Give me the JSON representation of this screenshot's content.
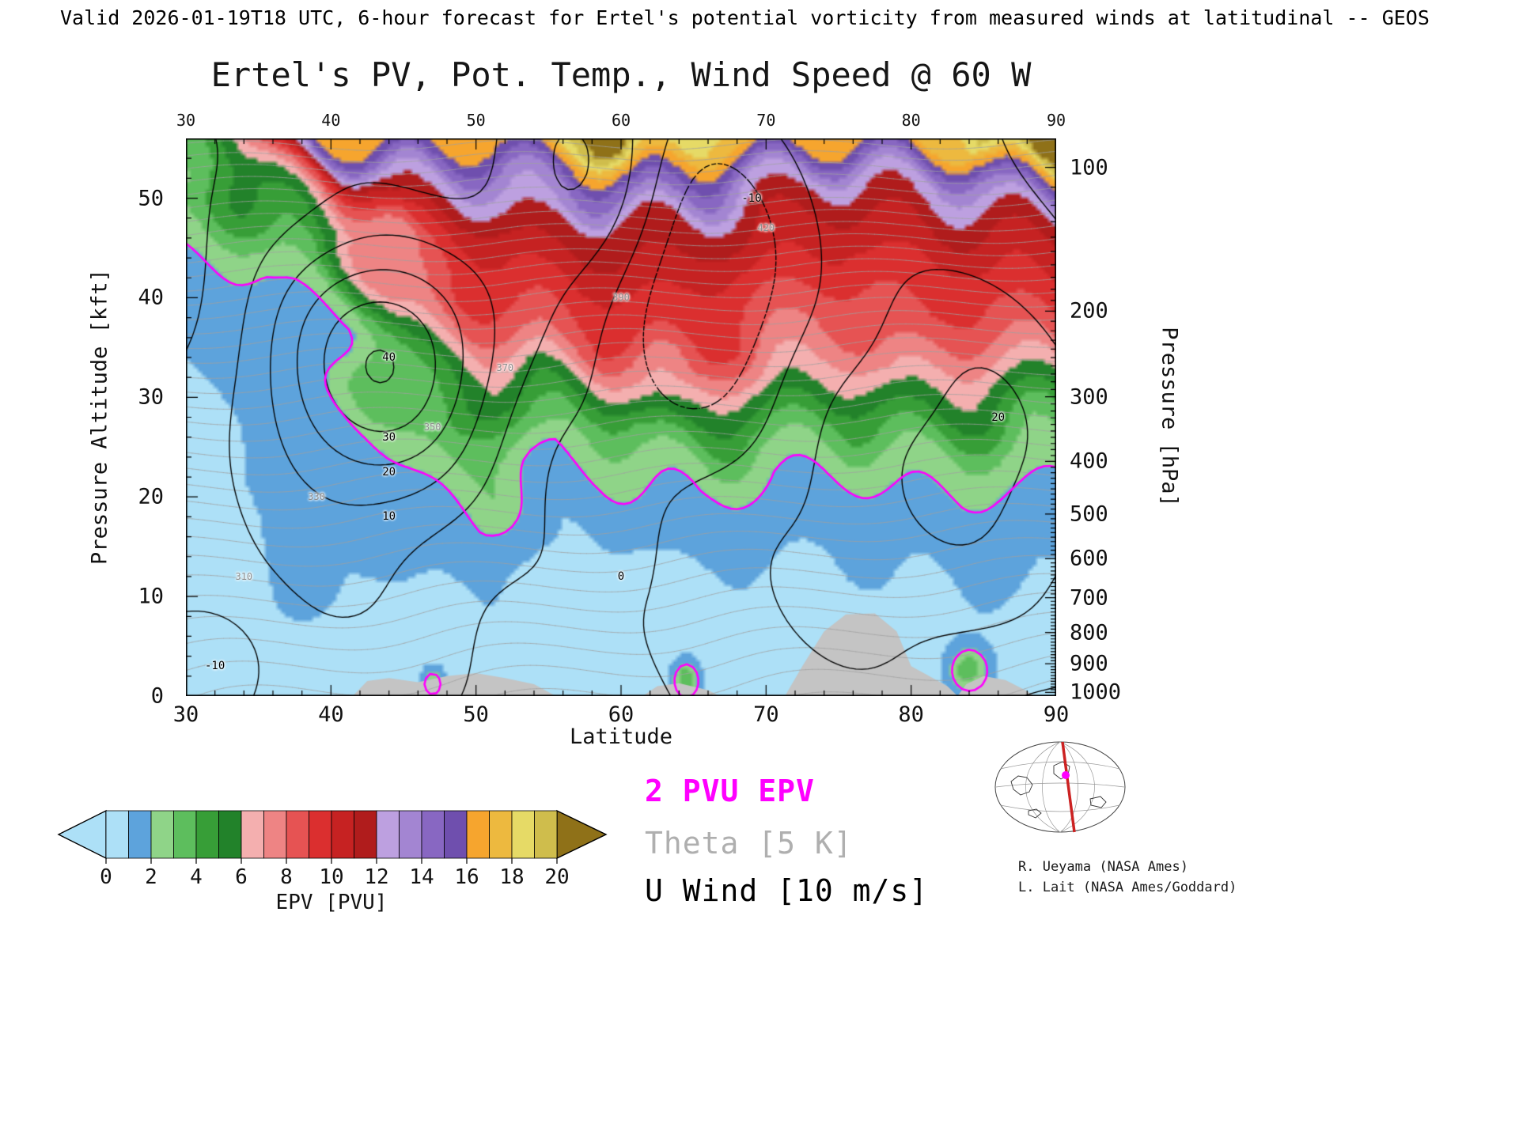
{
  "header": {
    "line": "Valid 2026-01-19T18 UTC, 6-hour forecast for Ertel's potential vorticity from measured winds at latitudinal -- GEOS"
  },
  "title": "Ertel's PV, Pot. Temp., Wind Speed @ 60 W",
  "axes": {
    "x_label": "Latitude",
    "y_left_label": "Pressure Altitude [kft]",
    "y_right_label": "Pressure [hPa]",
    "x_ticks": [
      30,
      40,
      50,
      60,
      70,
      80,
      90
    ],
    "x_minor_step": 2,
    "y_left_ticks": [
      0,
      10,
      20,
      30,
      40,
      50
    ],
    "y_left_minor_step": 2,
    "y_right_ticks": [
      100,
      200,
      300,
      400,
      500,
      600,
      700,
      800,
      900,
      1000
    ],
    "x_range": [
      30,
      90
    ],
    "y_range_kft": [
      0,
      56
    ]
  },
  "colorbar": {
    "label": "EPV [PVU]",
    "tick_values": [
      0,
      2,
      4,
      6,
      8,
      10,
      12,
      14,
      16,
      18,
      20
    ],
    "levels": [
      0,
      1,
      2,
      3,
      4,
      5,
      6,
      7,
      8,
      9,
      10,
      11,
      12,
      13,
      14,
      15,
      16,
      17,
      18,
      19,
      20
    ],
    "colors": [
      "#ADE0F7",
      "#5DA3DC",
      "#8FD488",
      "#5DBE5D",
      "#379E37",
      "#22822A",
      "#F4AFAF",
      "#EE8484",
      "#E65353",
      "#DB2F2F",
      "#C62222",
      "#B01C1C",
      "#BDA0E0",
      "#A385D2",
      "#8867C2",
      "#6F4FAE",
      "#F6A52E",
      "#EDB93F",
      "#E6DA66",
      "#CFBD4C"
    ],
    "over_color": "#8F7118"
  },
  "legend": [
    {
      "text": "2 PVU EPV",
      "color": "#FF00FF"
    },
    {
      "text": "Theta [5 K]",
      "color": "#AFAFAF"
    },
    {
      "text": "U Wind [10 m/s]",
      "color": "#000000"
    }
  ],
  "credits": [
    "R. Ueyama (NASA Ames)",
    "L. Lait (NASA Ames/Goddard)"
  ],
  "inset": {
    "meridian_color": "#CC2222",
    "marker_color": "#FF00FF"
  },
  "chart_data": {
    "type": "heatmap",
    "title": "Ertel's PV, Pot. Temp., Wind Speed @ 60 W",
    "xlabel": "Latitude",
    "ylabel": "Pressure Altitude [kft]",
    "x_range": [
      30,
      90
    ],
    "y_range_kft": [
      0,
      56
    ],
    "fill_variable": "Ertel potential vorticity [PVU]",
    "epv_grid": {
      "lats": [
        30,
        35,
        40,
        45,
        50,
        55,
        60,
        65,
        70,
        75,
        80,
        85,
        90
      ],
      "alts_kft": [
        0,
        4,
        8,
        12,
        16,
        20,
        24,
        28,
        32,
        36,
        40,
        44,
        48,
        52,
        56
      ],
      "values": [
        [
          0.3,
          0.3,
          0.3,
          0.4,
          0.5,
          0.4,
          0.4,
          0.5,
          0.5,
          0.5,
          0.6,
          0.7,
          0.6
        ],
        [
          0.3,
          0.3,
          0.4,
          0.5,
          0.6,
          0.5,
          0.5,
          0.6,
          0.6,
          0.6,
          0.7,
          0.8,
          0.7
        ],
        [
          0.3,
          0.35,
          0.5,
          0.7,
          0.8,
          0.6,
          0.6,
          0.8,
          0.7,
          0.7,
          0.8,
          0.9,
          0.8
        ],
        [
          0.35,
          0.4,
          0.6,
          1.0,
          1.2,
          0.8,
          0.8,
          1.0,
          0.9,
          0.9,
          1.0,
          1.1,
          1.0
        ],
        [
          0.4,
          0.5,
          0.8,
          1.4,
          1.6,
          1.0,
          1.0,
          1.3,
          1.2,
          1.1,
          1.3,
          1.4,
          1.2
        ],
        [
          0.5,
          0.6,
          1.0,
          1.9,
          2.6,
          1.4,
          1.5,
          2.0,
          1.6,
          1.5,
          1.8,
          2.0,
          1.6
        ],
        [
          0.6,
          0.8,
          1.2,
          2.4,
          3.5,
          2.0,
          2.5,
          3.5,
          2.5,
          2.3,
          2.8,
          3.0,
          2.2
        ],
        [
          0.8,
          1.0,
          1.3,
          3.0,
          4.5,
          3.5,
          4.0,
          6.0,
          4.5,
          4.0,
          5.0,
          5.0,
          3.5
        ],
        [
          1.0,
          1.2,
          1.5,
          4.2,
          6.0,
          5.5,
          6.5,
          8.0,
          6.5,
          6.0,
          7.0,
          6.5,
          5.5
        ],
        [
          1.2,
          1.5,
          1.7,
          5.5,
          7.5,
          8.0,
          9.0,
          9.5,
          8.0,
          7.5,
          8.5,
          8.0,
          8.0
        ],
        [
          1.5,
          1.8,
          2.2,
          7.0,
          9.0,
          9.5,
          10.0,
          10.0,
          9.0,
          8.5,
          9.5,
          9.0,
          9.5
        ],
        [
          2.0,
          2.2,
          3.5,
          8.5,
          10.0,
          10.5,
          11.0,
          11.0,
          10.0,
          9.5,
          10.0,
          10.0,
          10.5
        ],
        [
          2.5,
          4.0,
          6.0,
          10.0,
          11.0,
          12.0,
          12.0,
          12.0,
          11.0,
          10.5,
          11.0,
          11.5,
          12.0
        ],
        [
          3.0,
          6.0,
          10.0,
          12.5,
          13.0,
          14.0,
          16.0,
          15.0,
          13.0,
          12.0,
          13.0,
          14.0,
          16.0
        ],
        [
          4.0,
          8.0,
          16.0,
          17.0,
          16.5,
          18.0,
          22.0,
          19.0,
          17.0,
          16.0,
          17.0,
          18.0,
          23.0
        ]
      ]
    },
    "epv_bumps": [
      {
        "lat": 64.5,
        "alt": 1.5,
        "amp": 3.5,
        "slat": 0.9,
        "salt": 1.8
      },
      {
        "lat": 84.0,
        "alt": 2.5,
        "amp": 3.0,
        "slat": 1.3,
        "salt": 2.2
      },
      {
        "lat": 47.0,
        "alt": 1.2,
        "amp": 2.5,
        "slat": 0.8,
        "salt": 1.5
      },
      {
        "lat": 38.0,
        "alt": 14.0,
        "amp": 0.8,
        "slat": 4.0,
        "salt": 11.0
      }
    ],
    "pv_highlight_contour_pvu": 2,
    "theta_interval_K": 5,
    "theta_levels_range": [
      270,
      460
    ],
    "theta_params": {
      "base": 286,
      "dz": 1.9,
      "dz2": 0.021,
      "dlat": -0.22,
      "wiggle": 2.2
    },
    "uwind_interval_ms": 10,
    "uwind_levels_range": [
      -40,
      70
    ],
    "uwind_gaussians": [
      {
        "lat": 44,
        "slat": 8,
        "alt": 34,
        "salt": 13,
        "amp": 48
      },
      {
        "lat": 57,
        "slat": 7,
        "alt": 52,
        "salt": 16,
        "amp": 30
      },
      {
        "lat": 66,
        "slat": 6,
        "alt": 42,
        "salt": 16,
        "amp": -22
      },
      {
        "lat": 86,
        "slat": 9,
        "alt": 28,
        "salt": 22,
        "amp": 25
      },
      {
        "lat": 32,
        "slat": 4,
        "alt": 3,
        "salt": 6,
        "amp": -12
      }
    ],
    "uwind_background": {
      "a1": 6,
      "f1": 0.18,
      "a2": 4,
      "f2": 0.1,
      "wiggle": 0.8
    },
    "terrain_profile": [
      [
        41.5,
        0
      ],
      [
        42.5,
        1.5
      ],
      [
        44,
        1.8
      ],
      [
        46,
        1.4
      ],
      [
        48,
        2.0
      ],
      [
        50,
        2.3
      ],
      [
        52,
        1.8
      ],
      [
        54,
        1.2
      ],
      [
        55.5,
        0
      ],
      [
        61.5,
        0
      ],
      [
        62.5,
        1.0
      ],
      [
        64,
        1.3
      ],
      [
        66,
        0.6
      ],
      [
        66.8,
        0
      ],
      [
        71.3,
        0
      ],
      [
        72.5,
        3.0
      ],
      [
        74,
        6.5
      ],
      [
        75.5,
        8.2
      ],
      [
        77.5,
        8.3
      ],
      [
        79,
        6.5
      ],
      [
        80,
        3.0
      ],
      [
        81,
        2.2
      ],
      [
        82.5,
        1.0
      ],
      [
        83.2,
        0
      ],
      [
        83.8,
        1.2
      ],
      [
        85,
        2.0
      ],
      [
        86.5,
        1.6
      ],
      [
        88,
        0.5
      ],
      [
        88.5,
        0
      ]
    ],
    "contour_labels": {
      "theta": [
        {
          "text": "310",
          "lat": 34,
          "alt": 12
        },
        {
          "text": "330",
          "lat": 39,
          "alt": 20
        },
        {
          "text": "350",
          "lat": 47,
          "alt": 27
        },
        {
          "text": "370",
          "lat": 52,
          "alt": 33
        },
        {
          "text": "390",
          "lat": 60,
          "alt": 40
        },
        {
          "text": "420",
          "lat": 70,
          "alt": 47
        }
      ],
      "wind": [
        {
          "text": "40",
          "lat": 44,
          "alt": 34
        },
        {
          "text": "30",
          "lat": 44,
          "alt": 26
        },
        {
          "text": "20",
          "lat": 44,
          "alt": 22.5
        },
        {
          "text": "10",
          "lat": 44,
          "alt": 18
        },
        {
          "text": "0",
          "lat": 60,
          "alt": 12
        },
        {
          "text": "-10",
          "lat": 69,
          "alt": 50
        },
        {
          "text": "20",
          "lat": 86,
          "alt": 28
        },
        {
          "text": "-10",
          "lat": 32,
          "alt": 3
        }
      ]
    }
  }
}
